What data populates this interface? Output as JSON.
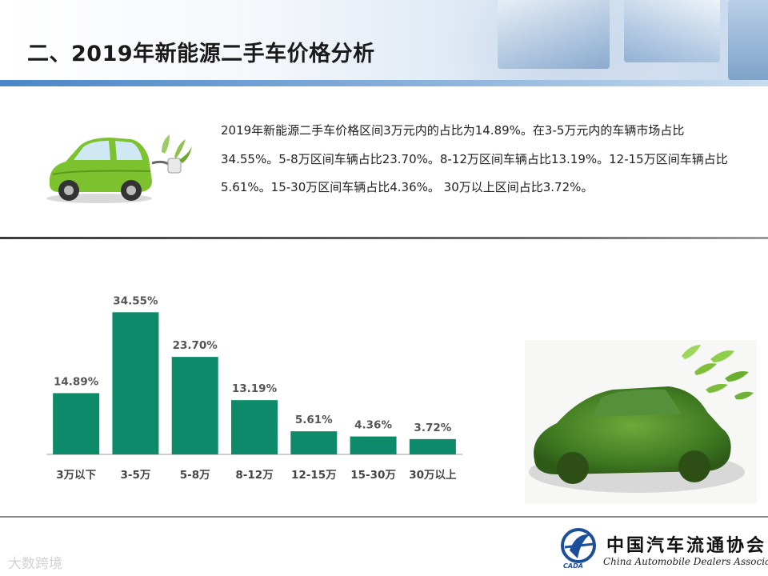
{
  "header": {
    "title": "二、2019年新能源二手车价格分析"
  },
  "description": "2019年新能源二手车价格区间3万元内的占比为14.89%。在3-5万元内的车辆市场占比34.55%。5-8万区间车辆占比23.70%。8-12万区间车辆占比13.19%。12-15万区间车辆占比5.61%。15-30万区间车辆占比4.36%。 30万以上区间占比3.72%。",
  "chart_data": {
    "type": "bar",
    "categories": [
      "3万以下",
      "3-5万",
      "5-8万",
      "8-12万",
      "12-15万",
      "15-30万",
      "30万以上"
    ],
    "values": [
      14.89,
      34.55,
      23.7,
      13.19,
      5.61,
      4.36,
      3.72
    ],
    "data_labels": [
      "14.89%",
      "34.55%",
      "23.70%",
      "13.19%",
      "5.61%",
      "4.36%",
      "3.72%"
    ],
    "title": "",
    "xlabel": "",
    "ylabel": "",
    "ylim": [
      0,
      35
    ],
    "grid": false,
    "bar_color": "#0d8a6a"
  },
  "footer": {
    "logo_cn": "中国汽车流通协会",
    "logo_en": "China Automobile Dealers Association",
    "logo_abbr": "CADA",
    "watermark": "大数跨境"
  },
  "colors": {
    "accent_blue": "#4a86c8",
    "bar_green": "#0d8a6a"
  }
}
